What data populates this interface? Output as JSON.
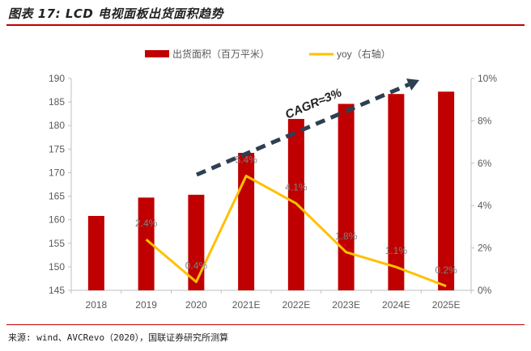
{
  "figure": {
    "title": "图表 17: LCD 电视面板出货面积趋势",
    "source": "来源: wind、AVCRevo（2020），国联证券研究所测算"
  },
  "colors": {
    "bar": "#c00000",
    "line": "#ffc000",
    "arrow": "#2f3f52",
    "axis_text": "#595959"
  },
  "chart_data": {
    "type": "bar",
    "categories": [
      "2018",
      "2019",
      "2020",
      "2021E",
      "2022E",
      "2023E",
      "2024E",
      "2025E"
    ],
    "series": [
      {
        "name": "出货面积（百万平米）",
        "type": "bar",
        "axis": "left",
        "values": [
          160.8,
          164.7,
          165.3,
          174.2,
          181.4,
          184.6,
          186.7,
          187.2
        ]
      },
      {
        "name": "yoy（右轴）",
        "type": "line",
        "axis": "right",
        "unit": "%",
        "values": [
          null,
          2.4,
          0.4,
          5.4,
          4.1,
          1.8,
          1.1,
          0.2
        ],
        "labels": [
          "",
          "2.4%",
          "0.4%",
          "5.4%",
          "4.1%",
          "1.8%",
          "1.1%",
          "0.2%"
        ]
      }
    ],
    "left_axis": {
      "min": 145,
      "max": 190,
      "step": 5,
      "ticks": [
        "145",
        "150",
        "155",
        "160",
        "165",
        "170",
        "175",
        "180",
        "185",
        "190"
      ]
    },
    "right_axis": {
      "min": 0,
      "max": 10,
      "step": 2,
      "ticks": [
        "0%",
        "2%",
        "4%",
        "6%",
        "8%",
        "10%"
      ]
    },
    "annotation": "CAGR≈3%",
    "legend_position": "top-center",
    "grid": false
  }
}
